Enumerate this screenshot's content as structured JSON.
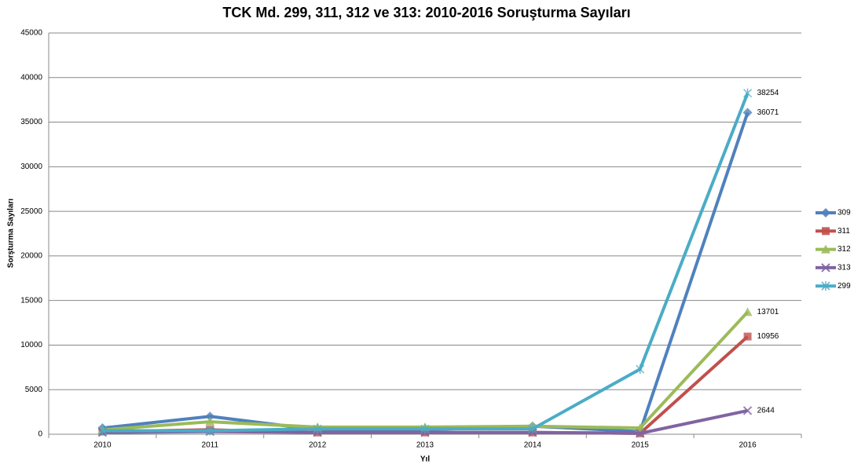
{
  "chart_data": {
    "type": "line",
    "title": "TCK Md. 299, 311, 312 ve 313: 2010-2016 Soruşturma Sayıları",
    "x_label": "Yıl",
    "y_label": "Sorşturma Sayıları",
    "categories": [
      "2010",
      "2011",
      "2012",
      "2013",
      "2014",
      "2015",
      "2016"
    ],
    "series": [
      {
        "name": "309",
        "color": "#4f81bd",
        "marker": "diamond",
        "values": [
          700,
          2000,
          500,
          500,
          900,
          300,
          36071
        ]
      },
      {
        "name": "311",
        "color": "#c0504d",
        "marker": "square",
        "values": [
          300,
          500,
          200,
          200,
          200,
          100,
          10956
        ]
      },
      {
        "name": "312",
        "color": "#9bbb59",
        "marker": "triangle",
        "values": [
          500,
          1400,
          800,
          800,
          900,
          700,
          13701
        ]
      },
      {
        "name": "313",
        "color": "#8064a2",
        "marker": "x",
        "values": [
          200,
          300,
          200,
          200,
          200,
          100,
          2644
        ]
      },
      {
        "name": "299",
        "color": "#4bacc6",
        "marker": "star",
        "values": [
          400,
          400,
          600,
          600,
          600,
          7300,
          38254
        ]
      }
    ],
    "ylim": [
      0,
      45000
    ],
    "yticks": [
      0,
      5000,
      10000,
      15000,
      20000,
      25000,
      30000,
      35000,
      40000,
      45000
    ],
    "grid": true,
    "legend": "right",
    "data_labels": "last"
  }
}
